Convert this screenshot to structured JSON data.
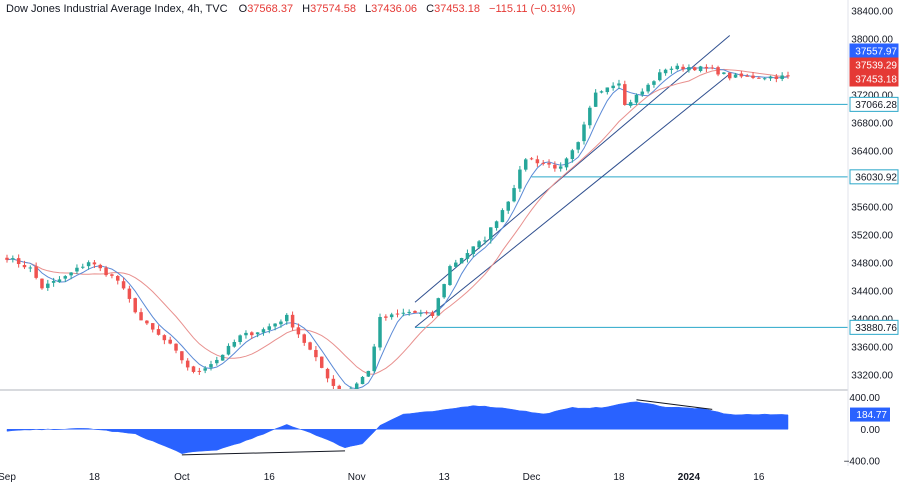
{
  "header": {
    "symbol": "Dow Jones Industrial Average Index, 4h, TVC",
    "open_label": "O",
    "open": "37568.37",
    "high_label": "H",
    "high": "37574.58",
    "low_label": "L",
    "low": "37436.06",
    "close_label": "C",
    "close": "37453.18",
    "change": "−115.11 (−0.31%)"
  },
  "colors": {
    "up": "#26a69a",
    "down": "#ef5350",
    "sma_fast": "#5b8ad6",
    "sma_slow": "#e8908e",
    "oscillator": "#2962ff",
    "level_line": "#2aa7c9",
    "channel": "#2f4f8f"
  },
  "chart_data": [
    {
      "type": "candlestick",
      "ylim": [
        33000,
        38500
      ],
      "ytick_values": [
        38400,
        38000,
        37600,
        37200,
        36800,
        36400,
        36000,
        35600,
        35200,
        34800,
        34400,
        34000,
        33600,
        33200
      ],
      "ytick_labels": [
        "38400.00",
        "38000.00",
        "37600.00",
        "37200.00",
        "36800.00",
        "36400.00",
        "36000.00",
        "35600.00",
        "35200.00",
        "34800.00",
        "34400.00",
        "34000.00",
        "33600.00",
        "33200.00"
      ],
      "xtick_labels": [
        "Sep",
        "18",
        "Oct",
        "16",
        "Nov",
        "13",
        "Dec",
        "18",
        "2024",
        "16"
      ],
      "xtick_bold": [
        "2024"
      ],
      "xtick_bar_index": [
        0,
        15,
        30,
        45,
        60,
        75,
        90,
        105,
        117,
        129
      ],
      "bar_count": 135,
      "key_points": [
        {
          "i": 0,
          "v": 34880
        },
        {
          "i": 4,
          "v": 34720
        },
        {
          "i": 6,
          "v": 34450
        },
        {
          "i": 10,
          "v": 34600
        },
        {
          "i": 14,
          "v": 34820
        },
        {
          "i": 19,
          "v": 34550
        },
        {
          "i": 23,
          "v": 33980
        },
        {
          "i": 28,
          "v": 33620
        },
        {
          "i": 32,
          "v": 33220
        },
        {
          "i": 36,
          "v": 33420
        },
        {
          "i": 40,
          "v": 33750
        },
        {
          "i": 44,
          "v": 33850
        },
        {
          "i": 48,
          "v": 34030
        },
        {
          "i": 52,
          "v": 33550
        },
        {
          "i": 56,
          "v": 33050
        },
        {
          "i": 58,
          "v": 32930
        },
        {
          "i": 62,
          "v": 33250
        },
        {
          "i": 64,
          "v": 34000
        },
        {
          "i": 69,
          "v": 34100
        },
        {
          "i": 73,
          "v": 34050
        },
        {
          "i": 76,
          "v": 34750
        },
        {
          "i": 82,
          "v": 35150
        },
        {
          "i": 86,
          "v": 35700
        },
        {
          "i": 89,
          "v": 36300
        },
        {
          "i": 95,
          "v": 36150
        },
        {
          "i": 98,
          "v": 36500
        },
        {
          "i": 101,
          "v": 37250
        },
        {
          "i": 105,
          "v": 37400
        },
        {
          "i": 106,
          "v": 37050
        },
        {
          "i": 109,
          "v": 37250
        },
        {
          "i": 113,
          "v": 37580
        },
        {
          "i": 117,
          "v": 37600
        },
        {
          "i": 121,
          "v": 37560
        },
        {
          "i": 124,
          "v": 37460
        }
      ],
      "sma_fast_period": 5,
      "sma_slow_period": 12,
      "channel": {
        "lower": [
          [
            70,
            33880
          ],
          [
            124,
            37500
          ]
        ],
        "upper": [
          [
            70,
            34240
          ],
          [
            124,
            38050
          ]
        ]
      },
      "horizontal_levels": [
        37066.28,
        36030.92,
        33880.76
      ],
      "level_labels": [
        "37066.28",
        "36030.92",
        "33880.76"
      ],
      "price_badges": [
        {
          "value": 37557.97,
          "label": "37557.97",
          "color": "#2962ff"
        },
        {
          "value": 37539.29,
          "label": "37539.29",
          "color": "#e53935"
        },
        {
          "value": 37453.18,
          "label": "37453.18",
          "color": "#e53935"
        }
      ]
    },
    {
      "type": "area",
      "ylim": [
        -460,
        480
      ],
      "ytick_values": [
        400,
        0,
        -400
      ],
      "ytick_labels": [
        "400.00",
        "0.00",
        "−400.00"
      ],
      "current_value": 184.77,
      "current_label": "184.77",
      "key_points": [
        {
          "i": 0,
          "v": -20
        },
        {
          "i": 8,
          "v": 0
        },
        {
          "i": 14,
          "v": 10
        },
        {
          "i": 22,
          "v": -60
        },
        {
          "i": 30,
          "v": -300
        },
        {
          "i": 36,
          "v": -260
        },
        {
          "i": 42,
          "v": -120
        },
        {
          "i": 48,
          "v": 60
        },
        {
          "i": 52,
          "v": -40
        },
        {
          "i": 58,
          "v": -230
        },
        {
          "i": 61,
          "v": -180
        },
        {
          "i": 64,
          "v": 50
        },
        {
          "i": 68,
          "v": 190
        },
        {
          "i": 74,
          "v": 230
        },
        {
          "i": 80,
          "v": 300
        },
        {
          "i": 86,
          "v": 260
        },
        {
          "i": 92,
          "v": 190
        },
        {
          "i": 97,
          "v": 270
        },
        {
          "i": 102,
          "v": 270
        },
        {
          "i": 108,
          "v": 350
        },
        {
          "i": 113,
          "v": 280
        },
        {
          "i": 119,
          "v": 260
        },
        {
          "i": 124,
          "v": 185
        }
      ],
      "divergence_lines": [
        [
          [
            30,
            -320
          ],
          [
            58,
            -270
          ]
        ],
        [
          [
            108,
            370
          ],
          [
            121,
            250
          ]
        ]
      ]
    }
  ]
}
